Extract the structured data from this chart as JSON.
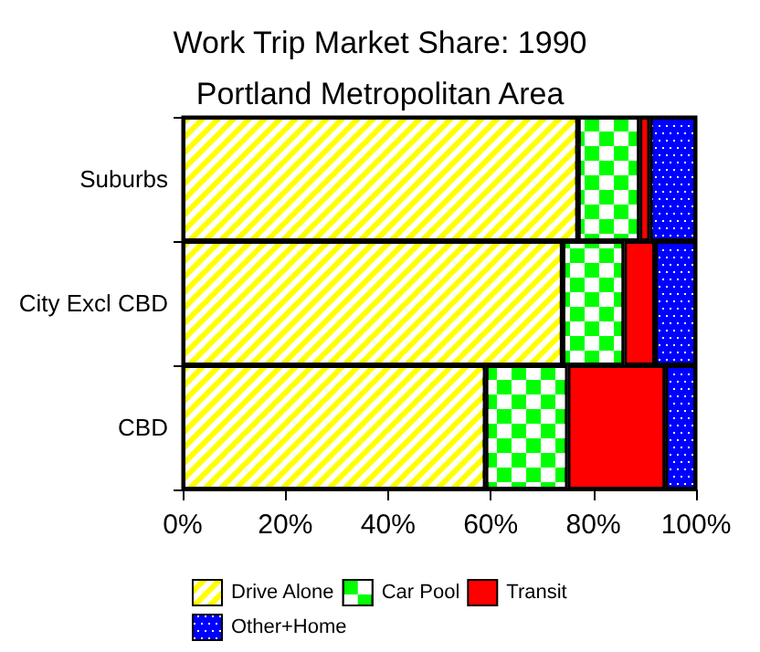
{
  "chart_data": {
    "type": "bar",
    "orientation": "horizontal",
    "stacked": true,
    "title": "Work Trip Market Share: 1990",
    "subtitle": "Portland Metropolitan Area",
    "categories": [
      "Suburbs",
      "City Excl CBD",
      "CBD"
    ],
    "series": [
      {
        "name": "Drive Alone",
        "color": "#ffff00",
        "values": [
          77,
          74,
          59
        ]
      },
      {
        "name": "Car Pool",
        "color": "#00ff00",
        "values": [
          12,
          12,
          16
        ]
      },
      {
        "name": "Transit",
        "color": "#ff0000",
        "values": [
          2,
          6,
          19
        ]
      },
      {
        "name": "Other+Home",
        "color": "#0000ff",
        "values": [
          9,
          8,
          6
        ]
      }
    ],
    "xlim": [
      0,
      100
    ],
    "xticks": [
      {
        "value": 0,
        "label": "0%"
      },
      {
        "value": 20,
        "label": "20%"
      },
      {
        "value": 40,
        "label": "40%"
      },
      {
        "value": 60,
        "label": "60%"
      },
      {
        "value": 80,
        "label": "80%"
      },
      {
        "value": 100,
        "label": "100%"
      }
    ],
    "legend": "bottom",
    "grid": false
  }
}
